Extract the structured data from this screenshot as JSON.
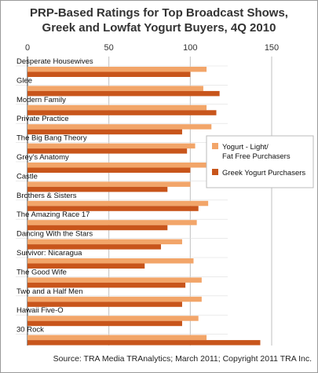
{
  "title_line1": "PRP-Based Ratings for Top Broadcast Shows,",
  "title_line2": "Greek and Lowfat Yogurt Buyers, 4Q 2010",
  "source": "Source: TRA Media TRAnalytics; March 2011; Copyright 2011 TRA Inc.",
  "colors": {
    "light": "#f2a569",
    "greek": "#c8551b",
    "grid": "#bfbfbf",
    "axis": "#333333"
  },
  "chart_data": {
    "type": "bar",
    "orientation": "horizontal",
    "title": "PRP-Based Ratings for Top Broadcast Shows, Greek and Lowfat Yogurt Buyers, 4Q 2010",
    "xlim": [
      0,
      150
    ],
    "xticks": [
      0,
      50,
      100,
      150
    ],
    "grid": true,
    "legend_position": "right",
    "categories": [
      "Desperate Housewives",
      "Glee",
      "Modern Family",
      "Private Practice",
      "The Big Bang Theory",
      "Grey's Anatomy",
      "Castle",
      "Brothers & Sisters",
      "The Amazing Race 17",
      "Dancing With the Stars",
      "Survivor: Nicaragua",
      "The Good Wife",
      "Two and a Half Men",
      "Hawaii Five-O",
      "30 Rock"
    ],
    "series": [
      {
        "name": "Yogurt - Light/ Fat Free Purchasers",
        "legend_lines": [
          "Yogurt - Light/",
          "Fat Free Purchasers"
        ],
        "values": [
          110,
          108,
          110,
          113,
          103,
          113,
          100,
          111,
          104,
          95,
          102,
          107,
          107,
          105,
          110
        ]
      },
      {
        "name": "Greek Yogurt Purchasers",
        "legend_lines": [
          "Greek Yogurt Purchasers"
        ],
        "values": [
          100,
          118,
          116,
          95,
          98,
          100,
          86,
          105,
          86,
          82,
          72,
          97,
          95,
          95,
          143
        ]
      }
    ]
  }
}
